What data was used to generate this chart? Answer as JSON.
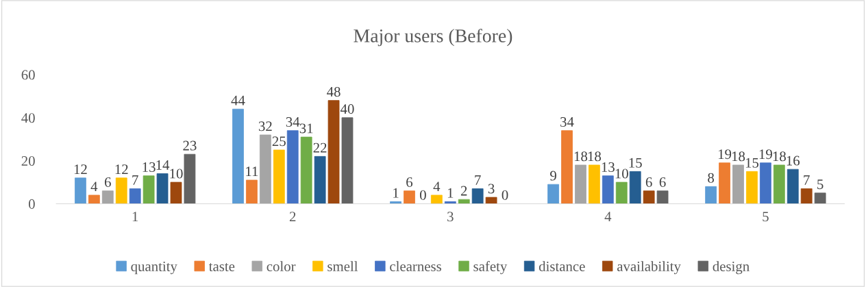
{
  "chart_data": {
    "type": "bar",
    "title": "Major users (Before)",
    "categories": [
      "1",
      "2",
      "3",
      "4",
      "5"
    ],
    "series": [
      {
        "name": "quantity",
        "color": "#5b9bd5",
        "values": [
          12,
          44,
          1,
          9,
          8
        ]
      },
      {
        "name": "taste",
        "color": "#ed7d31",
        "values": [
          4,
          11,
          6,
          34,
          19
        ]
      },
      {
        "name": "color",
        "color": "#a5a5a5",
        "values": [
          6,
          32,
          0,
          18,
          18
        ]
      },
      {
        "name": "smell",
        "color": "#ffc000",
        "values": [
          12,
          25,
          4,
          18,
          15
        ]
      },
      {
        "name": "clearness",
        "color": "#4472c4",
        "values": [
          7,
          34,
          1,
          13,
          19
        ]
      },
      {
        "name": "safety",
        "color": "#70ad47",
        "values": [
          13,
          31,
          2,
          10,
          18
        ]
      },
      {
        "name": "distance",
        "color": "#255e91",
        "values": [
          14,
          22,
          7,
          15,
          16
        ]
      },
      {
        "name": "availability",
        "color": "#9e480e",
        "values": [
          10,
          48,
          3,
          6,
          7
        ]
      },
      {
        "name": "design",
        "color": "#636363",
        "values": [
          23,
          40,
          0,
          6,
          5
        ]
      }
    ],
    "ylim": [
      0,
      60
    ],
    "yticks": [
      0,
      20,
      40,
      60
    ],
    "grid": false,
    "legend": "bottom",
    "data_labels": true
  }
}
